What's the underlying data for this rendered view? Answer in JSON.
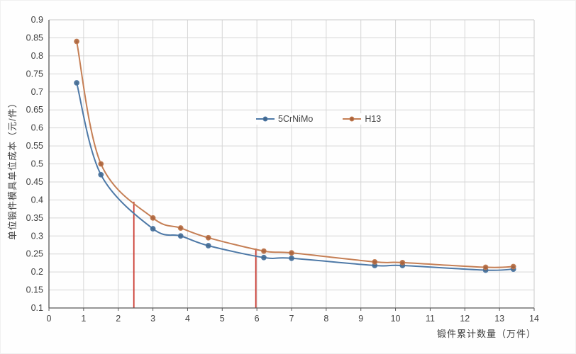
{
  "page": {
    "background": "#ffffff"
  },
  "chart_data": {
    "type": "line",
    "title": "",
    "xlabel": "锻件累计数量（万件）",
    "ylabel": "单位锻件模具单位成本（元/件）",
    "xlim": [
      0,
      14
    ],
    "ylim": [
      0.1,
      0.9
    ],
    "x_ticks": [
      0,
      1,
      2,
      3,
      4,
      5,
      6,
      7,
      8,
      9,
      10,
      11,
      12,
      13,
      14
    ],
    "y_ticks": [
      0.1,
      0.15,
      0.2,
      0.25,
      0.3,
      0.35,
      0.4,
      0.45,
      0.5,
      0.55,
      0.6,
      0.65,
      0.7,
      0.75,
      0.8,
      0.85,
      0.9
    ],
    "grid": true,
    "legend_position": "inside-upper-middle",
    "x": [
      0.8,
      1.5,
      3,
      3.8,
      4.6,
      6.2,
      7,
      9.4,
      10.2,
      12.6,
      13.4
    ],
    "series": [
      {
        "name": "5CrNiMo",
        "color": "#4e79a7",
        "marker_color": "#41688f",
        "values": [
          0.725,
          0.47,
          0.32,
          0.3,
          0.273,
          0.24,
          0.238,
          0.218,
          0.218,
          0.205,
          0.208
        ]
      },
      {
        "name": "H13",
        "color": "#c57f55",
        "marker_color": "#aa623a",
        "values": [
          0.84,
          0.5,
          0.35,
          0.322,
          0.295,
          0.258,
          0.253,
          0.228,
          0.226,
          0.213,
          0.215
        ]
      }
    ],
    "annotations": [
      {
        "type": "vline",
        "x": 2.45,
        "y_from": 0.1,
        "y_to": 0.395,
        "color": "#cb3a31"
      },
      {
        "type": "vline",
        "x": 5.97,
        "y_from": 0.1,
        "y_to": 0.265,
        "color": "#cb3a31"
      }
    ]
  },
  "colors": {
    "grid": "#d6d6d6",
    "frame": "#c9c9c9",
    "axis": "#595959",
    "tick_text": "#3f3f3f"
  }
}
